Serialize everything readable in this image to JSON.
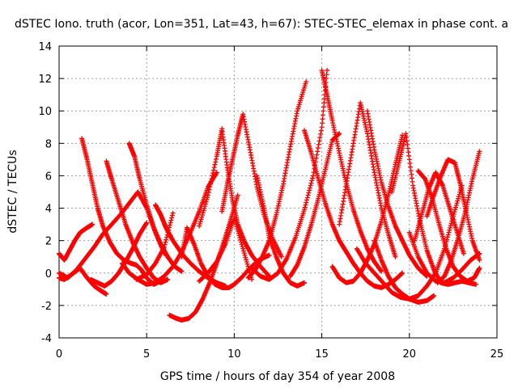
{
  "chart_data": {
    "type": "scatter",
    "title": "dSTEC Iono. truth (acor, Lon=351, Lat=43, h=67): STEC-STEC_elemax in phase cont. a",
    "xlabel": "GPS time / hours of day 354 of year 2008",
    "ylabel": "dSTEC  / TECUs",
    "xlim": [
      0,
      25
    ],
    "ylim": [
      -4,
      14
    ],
    "xticks": [
      0,
      5,
      10,
      15,
      20,
      25
    ],
    "yticks": [
      -4,
      -2,
      0,
      2,
      4,
      6,
      8,
      10,
      12,
      14
    ],
    "grid": true,
    "marker": "+",
    "color": "#ff0000",
    "series": [
      {
        "x": [
          0.0,
          0.5,
          1.0,
          1.5,
          2.0,
          2.5,
          3.0,
          3.5,
          4.0,
          4.5,
          5.0,
          5.5,
          6.0
        ],
        "y": [
          0.0,
          -0.3,
          0.2,
          0.9,
          1.6,
          2.4,
          3.0,
          3.6,
          4.3,
          5.0,
          4.0,
          2.5,
          1.2
        ]
      },
      {
        "x": [
          0.0,
          0.3,
          0.7,
          1.2,
          1.6,
          2.0,
          2.4,
          2.7
        ],
        "y": [
          -0.3,
          -0.4,
          -0.1,
          0.3,
          -0.3,
          -0.8,
          -1.1,
          -1.3
        ]
      },
      {
        "x": [
          0.0,
          0.3,
          0.6,
          0.9,
          1.2,
          1.6,
          1.9
        ],
        "y": [
          1.2,
          0.8,
          1.4,
          2.0,
          2.5,
          2.8,
          3.0
        ]
      },
      {
        "x": [
          1.3,
          1.6,
          1.9,
          2.2,
          2.5,
          2.9,
          3.3,
          3.7,
          4.1,
          4.4,
          4.7,
          5.0,
          5.4,
          5.8
        ],
        "y": [
          8.3,
          7.0,
          5.5,
          4.0,
          2.9,
          1.9,
          1.2,
          0.8,
          0.6,
          0.5,
          0.2,
          -0.3,
          -0.7,
          -0.5
        ]
      },
      {
        "x": [
          1.8,
          2.2,
          2.6,
          3.0,
          3.4,
          3.8,
          4.2,
          4.6,
          5.0
        ],
        "y": [
          -0.4,
          -0.6,
          -0.8,
          -0.5,
          0.0,
          0.7,
          1.5,
          2.4,
          3.1
        ]
      },
      {
        "x": [
          2.7,
          3.0,
          3.4,
          3.8,
          4.2,
          4.6,
          5.0,
          5.4,
          5.8,
          6.2
        ],
        "y": [
          6.9,
          5.8,
          4.4,
          3.0,
          1.9,
          1.0,
          0.3,
          -0.3,
          -0.6,
          -0.4
        ]
      },
      {
        "x": [
          4.0,
          4.3,
          4.6,
          5.0,
          5.4,
          5.8,
          6.2,
          6.6,
          7.0
        ],
        "y": [
          8.0,
          7.2,
          5.8,
          4.2,
          2.8,
          1.8,
          1.0,
          0.4,
          0.1
        ]
      },
      {
        "x": [
          3.6,
          4.0,
          4.5,
          5.0,
          5.5,
          6.0,
          6.5,
          7.0,
          7.5,
          8.0,
          8.5,
          9.0
        ],
        "y": [
          0.6,
          0.0,
          -0.4,
          -0.7,
          -0.6,
          -0.2,
          0.4,
          1.3,
          2.5,
          3.8,
          5.3,
          6.2
        ]
      },
      {
        "x": [
          5.5,
          5.8,
          6.1,
          6.5,
          7.0,
          7.5,
          8.0,
          8.5,
          9.0,
          9.5
        ],
        "y": [
          4.2,
          3.6,
          2.8,
          2.0,
          1.2,
          0.6,
          0.1,
          -0.3,
          -0.6,
          -0.8
        ]
      },
      {
        "x": [
          4.4,
          5.0,
          5.5,
          6.0,
          6.5
        ],
        "y": [
          -0.4,
          -0.1,
          0.6,
          1.6,
          3.7
        ]
      },
      {
        "x": [
          6.3,
          6.7,
          7.0,
          7.4,
          7.8,
          8.2,
          8.6,
          9.0,
          9.4,
          9.8,
          10.2
        ],
        "y": [
          -2.6,
          -2.8,
          -2.9,
          -2.8,
          -2.4,
          -1.6,
          -0.6,
          0.6,
          1.9,
          3.3,
          4.8
        ]
      },
      {
        "x": [
          7.0,
          7.3,
          7.7,
          8.1,
          8.5,
          8.9,
          9.3,
          9.7,
          10.0,
          10.4,
          10.9,
          11.4,
          12.0
        ],
        "y": [
          1.0,
          2.8,
          1.8,
          0.6,
          -0.2,
          -0.7,
          -0.9,
          -0.9,
          -0.7,
          -0.3,
          0.3,
          0.8,
          1.1
        ]
      },
      {
        "x": [
          8.0,
          8.5,
          9.0,
          9.3,
          9.6,
          9.9,
          10.2,
          10.6,
          11.0,
          11.5,
          12.0
        ],
        "y": [
          2.9,
          4.8,
          7.2,
          8.9,
          6.5,
          4.5,
          3.0,
          1.9,
          1.1,
          0.4,
          -0.2
        ]
      },
      {
        "x": [
          9.3,
          9.6,
          9.9,
          10.2,
          10.5,
          10.9,
          11.3,
          11.7,
          12.2,
          12.7
        ],
        "y": [
          3.8,
          5.5,
          7.0,
          8.5,
          9.8,
          7.6,
          5.3,
          3.6,
          2.1,
          1.0
        ]
      },
      {
        "x": [
          8.0,
          8.5,
          9.0,
          9.5,
          10.0,
          10.5,
          11.0
        ],
        "y": [
          -0.5,
          0.0,
          0.7,
          1.8,
          3.4,
          1.5,
          -0.4
        ]
      },
      {
        "x": [
          11.3,
          11.7,
          12.0,
          12.4,
          12.8,
          13.2,
          13.6,
          14.0
        ],
        "y": [
          6.0,
          4.0,
          2.2,
          1.0,
          0.0,
          -0.6,
          -0.8,
          -0.6
        ]
      },
      {
        "x": [
          10.8,
          11.2,
          11.6,
          12.0,
          12.4,
          12.8,
          13.2,
          13.6,
          14.1
        ],
        "y": [
          -0.3,
          0.2,
          1.0,
          2.0,
          3.6,
          5.5,
          7.8,
          10.0,
          11.8
        ]
      },
      {
        "x": [
          11.0,
          11.5,
          12.0,
          12.5,
          13.0,
          13.5,
          14.0,
          14.5,
          15.0,
          15.3
        ],
        "y": [
          0.3,
          -0.2,
          -0.4,
          0.0,
          0.9,
          2.2,
          3.9,
          6.0,
          9.0,
          12.5
        ]
      },
      {
        "x": [
          13.2,
          13.6,
          14.0,
          14.4,
          14.8,
          15.2,
          15.6,
          16.0
        ],
        "y": [
          -0.2,
          0.5,
          1.6,
          3.0,
          4.6,
          6.4,
          8.2,
          8.6
        ]
      },
      {
        "x": [
          14.0,
          14.4,
          14.8,
          15.2,
          15.6,
          16.0,
          16.4,
          16.8,
          17.2,
          17.6,
          18.0,
          18.4,
          18.8,
          19.2,
          19.6
        ],
        "y": [
          8.8,
          7.4,
          5.8,
          4.3,
          3.0,
          2.0,
          1.3,
          0.6,
          0.0,
          -0.5,
          -0.8,
          -0.9,
          -0.7,
          -0.4,
          0.0
        ]
      },
      {
        "x": [
          15.0,
          15.3,
          15.6,
          16.0,
          16.4,
          16.8,
          17.2,
          17.6,
          18.0,
          18.4
        ],
        "y": [
          12.5,
          11.0,
          9.4,
          7.4,
          5.5,
          3.9,
          2.6,
          1.5,
          0.7,
          0.1
        ]
      },
      {
        "x": [
          15.6,
          16.0,
          16.4,
          16.8,
          17.2,
          17.6,
          18.0,
          18.4,
          18.8,
          19.2,
          19.6
        ],
        "y": [
          0.4,
          -0.3,
          -0.6,
          -0.5,
          0.0,
          0.8,
          1.8,
          3.2,
          4.8,
          6.7,
          8.5
        ]
      },
      {
        "x": [
          16.0,
          16.4,
          16.8,
          17.2,
          17.6,
          18.0,
          18.4,
          18.8,
          19.2
        ],
        "y": [
          3.0,
          5.5,
          8.0,
          10.5,
          8.6,
          6.2,
          4.0,
          2.4,
          1.0
        ]
      },
      {
        "x": [
          17.6,
          18.0,
          18.4,
          18.8,
          19.2,
          19.6,
          20.0,
          20.5,
          21.0
        ],
        "y": [
          10.0,
          7.6,
          5.6,
          4.1,
          2.9,
          2.0,
          1.1,
          0.3,
          -0.2
        ]
      },
      {
        "x": [
          17.0,
          17.5,
          18.0,
          18.5,
          19.0,
          19.5,
          20.0,
          20.5,
          21.0,
          21.5,
          22.0,
          22.5,
          23.0
        ],
        "y": [
          1.5,
          0.6,
          0.0,
          -0.6,
          -1.2,
          -1.5,
          -1.6,
          -1.4,
          -0.8,
          0.0,
          1.5,
          3.5,
          5.4
        ]
      },
      {
        "x": [
          18.0,
          18.4,
          18.8,
          19.2,
          19.6,
          20.0,
          20.5,
          21.0,
          21.4
        ],
        "y": [
          2.0,
          0.8,
          -0.2,
          -0.9,
          -1.3,
          -1.6,
          -1.8,
          -1.7,
          -1.4
        ]
      },
      {
        "x": [
          19.0,
          19.4,
          19.8,
          20.2,
          20.6,
          21.0,
          21.4,
          21.8,
          22.2,
          22.6,
          23.0,
          23.4,
          23.8
        ],
        "y": [
          5.0,
          6.8,
          8.6,
          5.4,
          3.2,
          1.4,
          0.2,
          -0.6,
          -0.7,
          -0.6,
          -0.5,
          -0.6,
          -0.7
        ]
      },
      {
        "x": [
          20.5,
          20.9,
          21.3,
          21.7,
          22.1,
          22.5,
          22.9,
          23.3,
          23.7,
          24.0
        ],
        "y": [
          6.3,
          5.8,
          4.6,
          3.0,
          1.5,
          0.4,
          -0.2,
          -0.5,
          -0.3,
          0.3
        ]
      },
      {
        "x": [
          20.3,
          20.7,
          21.1,
          21.5,
          21.9,
          22.3,
          22.7,
          23.1
        ],
        "y": [
          2.0,
          3.6,
          5.2,
          6.2,
          5.4,
          4.0,
          2.6,
          1.2
        ]
      },
      {
        "x": [
          21.0,
          21.4,
          21.8,
          22.2,
          22.6,
          22.9,
          23.2,
          23.6,
          24.0
        ],
        "y": [
          3.5,
          4.8,
          6.0,
          7.0,
          6.8,
          5.5,
          4.0,
          2.0,
          0.8
        ]
      },
      {
        "x": [
          21.6,
          22.0,
          22.4,
          22.8,
          23.2,
          23.6,
          24.0
        ],
        "y": [
          -0.6,
          -0.2,
          0.8,
          2.2,
          3.8,
          5.8,
          7.5
        ]
      },
      {
        "x": [
          20.0,
          20.5,
          21.0,
          21.5,
          22.0,
          22.5,
          23.0,
          23.5,
          24.0
        ],
        "y": [
          2.5,
          1.0,
          0.0,
          -0.5,
          -0.6,
          -0.3,
          0.2,
          0.8,
          1.2
        ]
      }
    ]
  }
}
